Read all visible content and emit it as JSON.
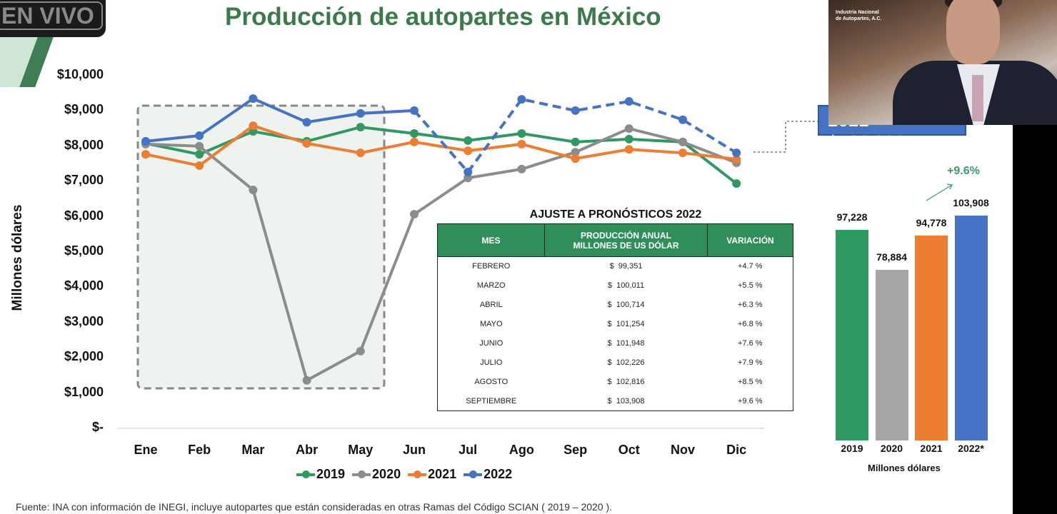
{
  "live_badge": "EN VIVO",
  "title": "Producción de autopartes en México",
  "y_axis_title": "Millones dólares",
  "chart_data": {
    "type": "line",
    "title": "Producción de autopartes en México",
    "ylabel": "Millones dólares",
    "ylim": [
      0,
      10000
    ],
    "y_ticks": [
      "$-",
      "$1,000",
      "$2,000",
      "$3,000",
      "$4,000",
      "$5,000",
      "$6,000",
      "$7,000",
      "$8,000",
      "$9,000",
      "$10,000"
    ],
    "categories": [
      "Ene",
      "Feb",
      "Mar",
      "Abr",
      "May",
      "Jun",
      "Jul",
      "Ago",
      "Sep",
      "Oct",
      "Nov",
      "Dic"
    ],
    "legend_position": "bottom",
    "series": [
      {
        "name": "2019",
        "color": "#2e9a62",
        "values": [
          8080,
          7770,
          8420,
          8140,
          8540,
          8360,
          8160,
          8360,
          8120,
          8200,
          8120,
          6940
        ]
      },
      {
        "name": "2020",
        "color": "#8c8c8c",
        "values": [
          8060,
          8000,
          6760,
          1360,
          2190,
          6070,
          7100,
          7350,
          7830,
          8500,
          8120,
          7530
        ]
      },
      {
        "name": "2021",
        "color": "#ed7d31",
        "values": [
          7770,
          7450,
          8580,
          8080,
          7810,
          8120,
          7870,
          8060,
          7650,
          7910,
          7810,
          7630
        ]
      },
      {
        "name": "2022",
        "color": "#4472c4",
        "values": [
          8140,
          8300,
          9350,
          8680,
          8930,
          9010,
          7270,
          9330,
          9010,
          9270,
          8750,
          7810
        ],
        "dashed_from_index": 5
      }
    ],
    "highlight_range": [
      "Ene",
      "May"
    ]
  },
  "table": {
    "title": "AJUSTE A PRONÓSTICOS 2022",
    "headers": [
      "MES",
      "PRODUCCIÓN ANUAL\nMILLONES DE US DÓLAR",
      "VARIACIÓN"
    ],
    "header_lines": [
      "PRODUCCIÓN ANUAL",
      "MILLONES DE US DÓLAR"
    ],
    "rows": [
      [
        "FEBRERO",
        "$  99,351",
        "+4.7 %"
      ],
      [
        "MARZO",
        "$  100,011",
        "+5.5 %"
      ],
      [
        "ABRIL",
        "$  100,714",
        "+6.3 %"
      ],
      [
        "MAYO",
        "$  101,254",
        "+6.8 %"
      ],
      [
        "JUNIO",
        "$  101,948",
        "+7.6 %"
      ],
      [
        "JULIO",
        "$  102,226",
        "+7.9 %"
      ],
      [
        "AGOSTO",
        "$  102,816",
        "+8.5 %"
      ],
      [
        "SEPTIEMBRE",
        "$  103,908",
        "+9.6 %"
      ]
    ]
  },
  "annual": {
    "type": "bar",
    "categories": [
      "2019",
      "2020",
      "2021",
      "2022*"
    ],
    "values": [
      97228,
      78884,
      94778,
      103908
    ],
    "labels": [
      "97,228",
      "78,884",
      "94,778",
      "103,908"
    ],
    "colors": [
      "#2e9a62",
      "#a6a6a6",
      "#ed7d31",
      "#4472c4"
    ],
    "growth": "+9.6%",
    "xlabel": "Millones dólares"
  },
  "callout": "2022* $103,908",
  "webcam_logo": "Industria Nacional de Autopartes, A.C.",
  "footnote": "Fuente: INA con información de INEGI, incluye autopartes que están consideradas en otras Ramas del Código SCIAN ( 2019 – 2020 )."
}
